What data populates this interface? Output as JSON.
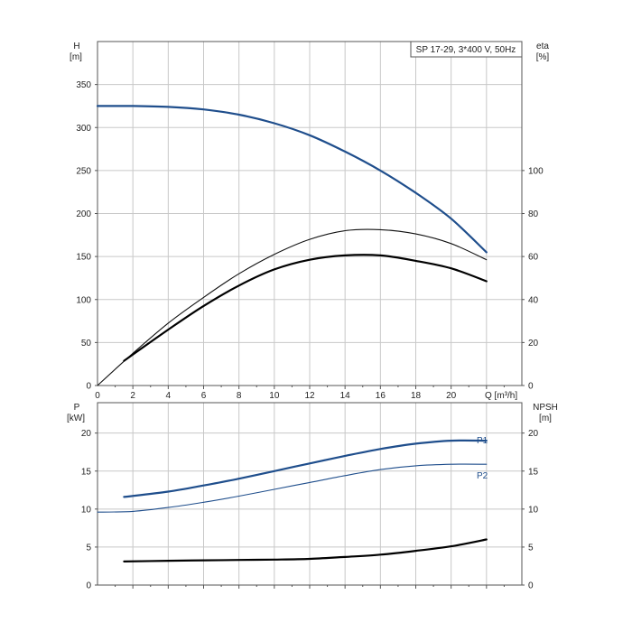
{
  "chart_data": [
    {
      "type": "line",
      "title": "SP 17-29, 3*400 V, 50Hz",
      "xlabel": "Q [m³/h]",
      "ylabel_left": [
        "H",
        "[m]"
      ],
      "ylabel_right": [
        "eta",
        "[%]"
      ],
      "xlim": [
        0,
        24
      ],
      "ylim_left": [
        0,
        400
      ],
      "ylim_right": [
        0,
        160
      ],
      "x_ticks": [
        0,
        2,
        4,
        6,
        8,
        10,
        12,
        14,
        16,
        18,
        20
      ],
      "y_ticks_left": [
        0,
        50,
        100,
        150,
        200,
        250,
        300,
        350
      ],
      "y_ticks_right": [
        0,
        20,
        40,
        60,
        80,
        100
      ],
      "grid": true,
      "series": [
        {
          "axis": "left",
          "color": "#1f4e8c",
          "width": 2.2,
          "points": [
            [
              0,
              325
            ],
            [
              2,
              325
            ],
            [
              4,
              324
            ],
            [
              6,
              321
            ],
            [
              8,
              315
            ],
            [
              10,
              305
            ],
            [
              12,
              291
            ],
            [
              14,
              272
            ],
            [
              16,
              250
            ],
            [
              18,
              224
            ],
            [
              20,
              194
            ],
            [
              22,
              155
            ]
          ]
        },
        {
          "axis": "right",
          "color": "#111111",
          "width": 1.1,
          "points": [
            [
              0,
              0
            ],
            [
              2,
              15
            ],
            [
              4,
              29
            ],
            [
              6,
              41
            ],
            [
              8,
              52
            ],
            [
              10,
              61
            ],
            [
              12,
              68
            ],
            [
              14,
              72
            ],
            [
              16,
              72.5
            ],
            [
              18,
              70.5
            ],
            [
              20,
              66
            ],
            [
              22,
              58.5
            ]
          ]
        },
        {
          "axis": "right",
          "color": "#000000",
          "width": 2.2,
          "points": [
            [
              1.5,
              11.5
            ],
            [
              4,
              26
            ],
            [
              6,
              37
            ],
            [
              8,
              46.5
            ],
            [
              10,
              54
            ],
            [
              12,
              58.5
            ],
            [
              14,
              60.5
            ],
            [
              16,
              60.5
            ],
            [
              18,
              58
            ],
            [
              20,
              54.5
            ],
            [
              22,
              48.5
            ]
          ]
        }
      ]
    },
    {
      "type": "line",
      "xlim": [
        0,
        24
      ],
      "ylabel_left": [
        "P",
        "[kW]"
      ],
      "ylabel_right": [
        "NPSH",
        "[m]"
      ],
      "ylim_left": [
        0,
        24
      ],
      "ylim_right": [
        0,
        24
      ],
      "y_ticks_left": [
        0,
        5,
        10,
        15,
        20
      ],
      "y_ticks_right": [
        0,
        5,
        10,
        15,
        20
      ],
      "grid": true,
      "series": [
        {
          "name": "P1",
          "axis": "left",
          "color": "#1f4e8c",
          "width": 2.2,
          "points": [
            [
              1.5,
              11.6
            ],
            [
              4,
              12.3
            ],
            [
              6,
              13.1
            ],
            [
              8,
              14.0
            ],
            [
              10,
              15.0
            ],
            [
              12,
              16.0
            ],
            [
              14,
              17.0
            ],
            [
              16,
              17.9
            ],
            [
              18,
              18.6
            ],
            [
              20,
              19.0
            ],
            [
              22,
              19.0
            ]
          ]
        },
        {
          "name": "P2",
          "axis": "left",
          "color": "#1f4e8c",
          "width": 1.1,
          "points": [
            [
              0,
              9.6
            ],
            [
              2,
              9.7
            ],
            [
              4,
              10.2
            ],
            [
              6,
              10.9
            ],
            [
              8,
              11.7
            ],
            [
              10,
              12.6
            ],
            [
              12,
              13.5
            ],
            [
              14,
              14.4
            ],
            [
              16,
              15.2
            ],
            [
              18,
              15.7
            ],
            [
              20,
              15.9
            ],
            [
              22,
              15.9
            ]
          ]
        },
        {
          "axis": "right",
          "color": "#000000",
          "width": 2.2,
          "points": [
            [
              1.5,
              3.1
            ],
            [
              4,
              3.2
            ],
            [
              6,
              3.25
            ],
            [
              8,
              3.3
            ],
            [
              10,
              3.35
            ],
            [
              12,
              3.45
            ],
            [
              14,
              3.7
            ],
            [
              16,
              4.0
            ],
            [
              18,
              4.5
            ],
            [
              20,
              5.1
            ],
            [
              22,
              6.0
            ]
          ]
        }
      ]
    }
  ]
}
